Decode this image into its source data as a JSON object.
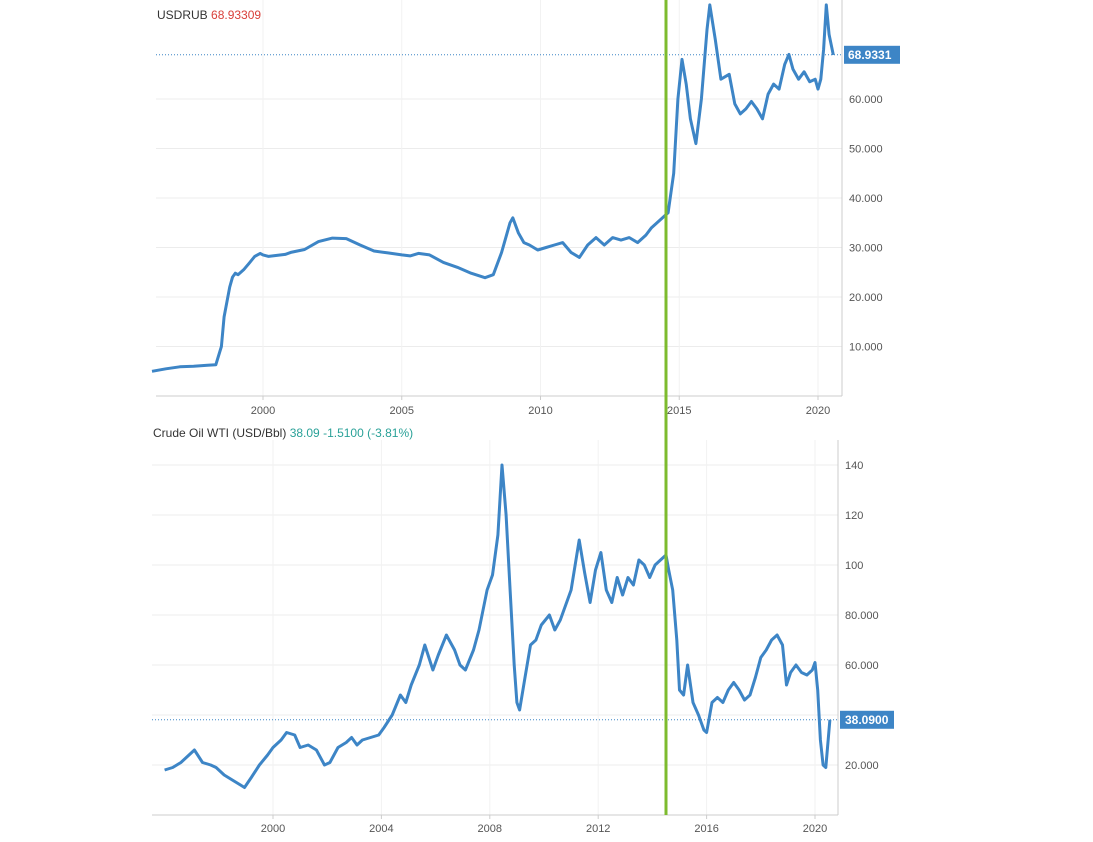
{
  "colors": {
    "line": "#3d85c6",
    "marker_line": "#7dbb2e",
    "usdrub_value": "#d9403a",
    "oil_value": "#2aa198",
    "badge_bg": "#3d85c6",
    "grid": "#ececec"
  },
  "chart_data": [
    {
      "type": "line",
      "title": "USDRUB",
      "title_value": "68.93309",
      "last_badge": "68.9331",
      "last_value": 68.93,
      "xlim": [
        1996.0,
        2020.8
      ],
      "ylim": [
        0,
        80
      ],
      "x_ticks": [
        2000,
        2005,
        2010,
        2015,
        2020
      ],
      "x_tick_labels": [
        "2000",
        "2005",
        "2010",
        "2015",
        "2020"
      ],
      "y_ticks": [
        10,
        20,
        30,
        40,
        50,
        60
      ],
      "y_tick_labels": [
        "10.000",
        "20.000",
        "30.000",
        "40.000",
        "50.000",
        "60.000"
      ],
      "series": [
        {
          "name": "USDRUB",
          "x": [
            1996.0,
            1996.5,
            1997.0,
            1997.5,
            1998.0,
            1998.3,
            1998.5,
            1998.6,
            1998.8,
            1998.9,
            1999.0,
            1999.1,
            1999.3,
            1999.5,
            1999.7,
            1999.9,
            2000.0,
            2000.2,
            2000.5,
            2000.8,
            2001.0,
            2001.5,
            2002.0,
            2002.5,
            2003.0,
            2003.5,
            2004.0,
            2004.5,
            2005.0,
            2005.3,
            2005.6,
            2006.0,
            2006.5,
            2007.0,
            2007.5,
            2008.0,
            2008.3,
            2008.6,
            2008.9,
            2009.0,
            2009.2,
            2009.4,
            2009.6,
            2009.9,
            2010.2,
            2010.5,
            2010.8,
            2011.1,
            2011.4,
            2011.7,
            2012.0,
            2012.3,
            2012.6,
            2012.9,
            2013.2,
            2013.5,
            2013.8,
            2014.0,
            2014.3,
            2014.6,
            2014.8,
            2014.95,
            2015.1,
            2015.25,
            2015.4,
            2015.6,
            2015.8,
            2016.0,
            2016.1,
            2016.3,
            2016.5,
            2016.8,
            2017.0,
            2017.2,
            2017.4,
            2017.6,
            2017.8,
            2018.0,
            2018.2,
            2018.4,
            2018.6,
            2018.8,
            2018.95,
            2019.1,
            2019.3,
            2019.5,
            2019.7,
            2019.9,
            2020.0,
            2020.1,
            2020.2,
            2020.3,
            2020.4,
            2020.55
          ],
          "values": [
            5.0,
            5.5,
            5.9,
            6.0,
            6.2,
            6.3,
            10.0,
            16.0,
            22.0,
            24.0,
            24.8,
            24.5,
            25.5,
            26.8,
            28.2,
            28.8,
            28.5,
            28.2,
            28.4,
            28.6,
            29.0,
            29.6,
            31.2,
            31.9,
            31.8,
            30.5,
            29.3,
            28.9,
            28.5,
            28.3,
            28.8,
            28.5,
            27.0,
            26.0,
            24.8,
            23.9,
            24.5,
            29.0,
            35.0,
            36.0,
            33.0,
            31.0,
            30.5,
            29.5,
            30.0,
            30.5,
            31.0,
            29.0,
            28.0,
            30.5,
            32.0,
            30.5,
            32.0,
            31.5,
            32.0,
            31.0,
            32.5,
            34.0,
            35.5,
            37.0,
            45.0,
            60.0,
            68.0,
            63.0,
            56.0,
            51.0,
            60.0,
            74.0,
            79.0,
            72.0,
            64.0,
            65.0,
            59.0,
            57.0,
            58.0,
            59.5,
            58.0,
            56.0,
            61.0,
            63.0,
            62.0,
            67.0,
            69.0,
            66.0,
            64.0,
            65.5,
            63.5,
            64.0,
            62.0,
            64.0,
            70.0,
            79.0,
            73.0,
            68.9
          ]
        }
      ]
    },
    {
      "type": "line",
      "title": "Crude Oil WTI (USD/Bbl)",
      "title_value": "38.09",
      "title_change": "-1.5100 (-3.81%)",
      "last_badge": "38.0900",
      "last_value": 38.09,
      "xlim": [
        1996.0,
        2020.8
      ],
      "ylim": [
        0,
        150
      ],
      "x_ticks": [
        2000,
        2004,
        2008,
        2012,
        2016,
        2020
      ],
      "x_tick_labels": [
        "2000",
        "2004",
        "2008",
        "2012",
        "2016",
        "2020"
      ],
      "y_ticks": [
        20,
        40,
        60,
        80,
        100,
        120,
        140
      ],
      "y_tick_labels": [
        "20.000",
        "",
        "60.000",
        "80.000",
        "100",
        "120",
        "140"
      ],
      "series": [
        {
          "name": "Crude Oil WTI",
          "x": [
            1996.0,
            1996.3,
            1996.6,
            1996.9,
            1997.1,
            1997.4,
            1997.7,
            1997.9,
            1998.2,
            1998.5,
            1998.8,
            1998.95,
            1999.2,
            1999.5,
            1999.8,
            2000.0,
            2000.3,
            2000.5,
            2000.8,
            2001.0,
            2001.3,
            2001.6,
            2001.9,
            2002.1,
            2002.4,
            2002.7,
            2002.9,
            2003.1,
            2003.3,
            2003.6,
            2003.9,
            2004.1,
            2004.4,
            2004.7,
            2004.9,
            2005.1,
            2005.4,
            2005.6,
            2005.9,
            2006.1,
            2006.4,
            2006.7,
            2006.9,
            2007.1,
            2007.4,
            2007.6,
            2007.9,
            2008.1,
            2008.3,
            2008.45,
            2008.6,
            2008.75,
            2008.9,
            2009.0,
            2009.1,
            2009.3,
            2009.5,
            2009.7,
            2009.9,
            2010.2,
            2010.4,
            2010.6,
            2010.8,
            2011.0,
            2011.3,
            2011.5,
            2011.7,
            2011.9,
            2012.1,
            2012.3,
            2012.5,
            2012.7,
            2012.9,
            2013.1,
            2013.3,
            2013.5,
            2013.7,
            2013.9,
            2014.1,
            2014.3,
            2014.5,
            2014.6,
            2014.75,
            2014.9,
            2015.0,
            2015.15,
            2015.3,
            2015.5,
            2015.7,
            2015.9,
            2016.0,
            2016.2,
            2016.4,
            2016.6,
            2016.8,
            2017.0,
            2017.2,
            2017.4,
            2017.6,
            2017.8,
            2018.0,
            2018.2,
            2018.4,
            2018.6,
            2018.8,
            2018.95,
            2019.1,
            2019.3,
            2019.5,
            2019.7,
            2019.9,
            2020.0,
            2020.1,
            2020.2,
            2020.3,
            2020.4,
            2020.55
          ],
          "values": [
            18.0,
            19.0,
            21.0,
            24.0,
            26.0,
            21.0,
            20.0,
            19.0,
            16.0,
            14.0,
            12.0,
            11.0,
            15.0,
            20.0,
            24.0,
            27.0,
            30.0,
            33.0,
            32.0,
            27.0,
            28.0,
            26.0,
            20.0,
            21.0,
            27.0,
            29.0,
            31.0,
            28.0,
            30.0,
            31.0,
            32.0,
            35.0,
            40.0,
            48.0,
            45.0,
            52.0,
            60.0,
            68.0,
            58.0,
            64.0,
            72.0,
            66.0,
            60.0,
            58.0,
            66.0,
            74.0,
            90.0,
            96.0,
            112.0,
            140.0,
            120.0,
            90.0,
            60.0,
            45.0,
            42.0,
            55.0,
            68.0,
            70.0,
            76.0,
            80.0,
            74.0,
            78.0,
            84.0,
            90.0,
            110.0,
            97.0,
            85.0,
            98.0,
            105.0,
            90.0,
            85.0,
            95.0,
            88.0,
            95.0,
            92.0,
            102.0,
            100.0,
            95.0,
            100.0,
            102.0,
            104.0,
            98.0,
            90.0,
            70.0,
            50.0,
            48.0,
            60.0,
            45.0,
            40.0,
            34.0,
            33.0,
            45.0,
            47.0,
            45.0,
            50.0,
            53.0,
            50.0,
            46.0,
            48.0,
            55.0,
            63.0,
            66.0,
            70.0,
            72.0,
            68.0,
            52.0,
            57.0,
            60.0,
            57.0,
            56.0,
            58.0,
            61.0,
            50.0,
            30.0,
            20.0,
            19.0,
            38.09
          ]
        }
      ]
    }
  ]
}
